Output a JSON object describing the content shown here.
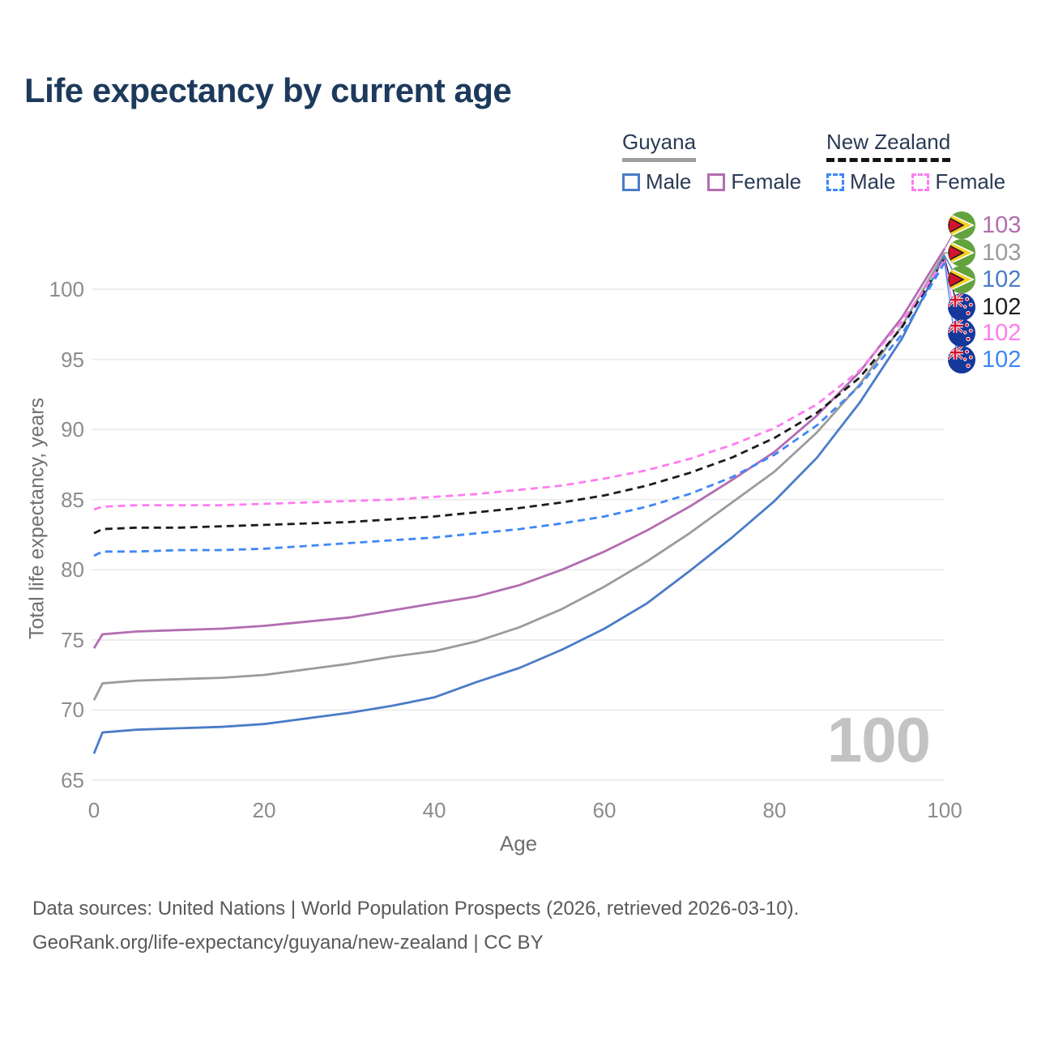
{
  "page": {
    "title": "Life expectancy by current age"
  },
  "legend": {
    "groups": [
      {
        "label": "Guyana",
        "line_style": "solid",
        "underline_color": "#9e9e9e",
        "items": [
          {
            "label": "Male",
            "color": "#4a7cc7",
            "style": "solid"
          },
          {
            "label": "Female",
            "color": "#b26db0",
            "style": "solid"
          }
        ]
      },
      {
        "label": "New Zealand",
        "line_style": "dashed",
        "underline_color": "#141414",
        "items": [
          {
            "label": "Male",
            "color": "#3f87f5",
            "style": "dashed"
          },
          {
            "label": "Female",
            "color": "#ff7cf0",
            "style": "dashed"
          }
        ]
      }
    ]
  },
  "axes": {
    "xlabel": "Age",
    "ylabel": "Total life expectancy, years",
    "xticks": [
      0,
      20,
      40,
      60,
      80,
      100
    ],
    "yticks": [
      65,
      70,
      75,
      80,
      85,
      90,
      95,
      100
    ],
    "xlim": [
      0,
      100
    ],
    "ylim": [
      65,
      100
    ]
  },
  "watermark_age": "100",
  "chart_data": {
    "type": "line",
    "title": "Life expectancy by current age",
    "xlabel": "Age",
    "ylabel": "Total life expectancy, years",
    "xlim": [
      0,
      100
    ],
    "ylim": [
      65,
      100
    ],
    "grid": "horizontal-only",
    "legend_position": "top-right",
    "x": [
      0,
      1,
      5,
      10,
      15,
      20,
      25,
      30,
      35,
      40,
      45,
      50,
      55,
      60,
      65,
      70,
      75,
      80,
      85,
      90,
      95,
      100
    ],
    "series": [
      {
        "name": "Guyana Female",
        "country": "Guyana",
        "sex": "Female",
        "color": "#b26db0",
        "dash": false,
        "end_label": "103",
        "flag": "guyana",
        "values": [
          74.4,
          75.4,
          75.6,
          75.7,
          75.8,
          76.0,
          76.3,
          76.6,
          77.1,
          77.6,
          78.1,
          78.9,
          80.0,
          81.3,
          82.8,
          84.5,
          86.4,
          88.4,
          91.0,
          94.1,
          98.0,
          102.9
        ]
      },
      {
        "name": "Guyana",
        "country": "Guyana",
        "sex": "Both",
        "color": "#9b9b9b",
        "dash": false,
        "end_label": "103",
        "flag": "guyana",
        "values": [
          70.7,
          71.9,
          72.1,
          72.2,
          72.3,
          72.5,
          72.9,
          73.3,
          73.8,
          74.2,
          74.9,
          75.9,
          77.2,
          78.8,
          80.6,
          82.6,
          84.8,
          87.0,
          89.8,
          93.2,
          97.4,
          102.6
        ]
      },
      {
        "name": "Guyana Male",
        "country": "Guyana",
        "sex": "Male",
        "color": "#4a7cc7",
        "dash": false,
        "end_label": "102",
        "flag": "guyana",
        "values": [
          66.9,
          68.4,
          68.6,
          68.7,
          68.8,
          69.0,
          69.4,
          69.8,
          70.3,
          70.9,
          72.0,
          73.0,
          74.3,
          75.8,
          77.6,
          79.9,
          82.3,
          84.9,
          88.0,
          91.9,
          96.5,
          102.4
        ]
      },
      {
        "name": "New Zealand",
        "country": "New Zealand",
        "sex": "Both",
        "color": "#1c1c1c",
        "dash": true,
        "end_label": "102",
        "flag": "new-zealand",
        "values": [
          82.6,
          82.9,
          83.0,
          83.0,
          83.1,
          83.2,
          83.3,
          83.4,
          83.6,
          83.8,
          84.1,
          84.4,
          84.8,
          85.3,
          86.0,
          86.9,
          88.0,
          89.4,
          91.2,
          93.7,
          97.3,
          102.2
        ]
      },
      {
        "name": "New Zealand Female",
        "country": "New Zealand",
        "sex": "Female",
        "color": "#ff7cf0",
        "dash": true,
        "end_label": "102",
        "flag": "new-zealand",
        "values": [
          84.3,
          84.5,
          84.6,
          84.6,
          84.6,
          84.7,
          84.8,
          84.9,
          85.0,
          85.2,
          85.4,
          85.7,
          86.0,
          86.5,
          87.1,
          87.9,
          88.9,
          90.1,
          91.8,
          94.2,
          97.7,
          102.1
        ]
      },
      {
        "name": "New Zealand Male",
        "country": "New Zealand",
        "sex": "Male",
        "color": "#3f87f5",
        "dash": true,
        "end_label": "102",
        "flag": "new-zealand",
        "values": [
          81.0,
          81.3,
          81.3,
          81.4,
          81.4,
          81.5,
          81.7,
          81.9,
          82.1,
          82.3,
          82.6,
          82.9,
          83.3,
          83.8,
          84.5,
          85.4,
          86.6,
          88.2,
          90.3,
          93.1,
          96.8,
          101.9
        ]
      }
    ],
    "end_labels": [
      {
        "value": "103",
        "color": "#b26db0",
        "flag": "guyana"
      },
      {
        "value": "103",
        "color": "#9b9b9b",
        "flag": "guyana"
      },
      {
        "value": "102",
        "color": "#4a7cc7",
        "flag": "guyana"
      },
      {
        "value": "102",
        "color": "#1c1c1c",
        "flag": "new-zealand"
      },
      {
        "value": "102",
        "color": "#ff7cf0",
        "flag": "new-zealand"
      },
      {
        "value": "102",
        "color": "#3f87f5",
        "flag": "new-zealand"
      }
    ]
  },
  "footer": {
    "line1": "Data sources: United Nations | World Population Prospects (2026, retrieved 2026-03-10).",
    "line2": "GeoRank.org/life-expectancy/guyana/new-zealand | CC BY"
  }
}
